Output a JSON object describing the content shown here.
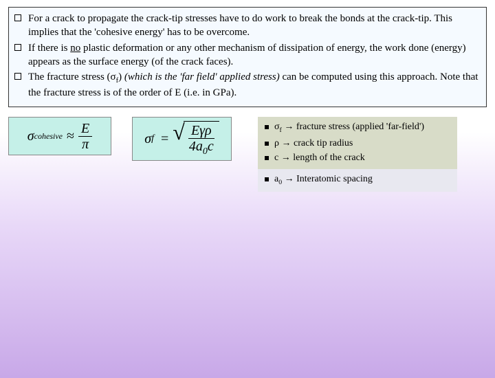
{
  "bullets": [
    {
      "pre": "For a crack to propagate the crack-tip stresses have to do work to break the bonds at the crack-tip. This implies that the 'cohesive energy' has to be overcome."
    },
    {
      "pre": "If there is ",
      "no": "no",
      "post": " plastic deformation or any other mechanism of dissipation of energy, the work done (energy) appears as the surface energy (of the crack faces)."
    },
    {
      "pre": "The fracture stress (σ",
      "sub": "f",
      "mid": ") ",
      "italic": "(which is the 'far field' applied stress)",
      "post": " can be computed using this approach. Note that the fracture stress is of the order of E (i.e. in GPa)."
    }
  ],
  "eq1": {
    "lhs_sym": "σ",
    "lhs_sub": "cohesive",
    "approx": "≈",
    "num": "E",
    "den": "π"
  },
  "eq2": {
    "lhs_sym": "σ",
    "lhs_sub": "f",
    "eq": "=",
    "num": "Eγρ",
    "den_pre": "4a",
    "den_sub": "0",
    "den_post": "c"
  },
  "defs1": [
    {
      "sym": "σ",
      "sub": "f",
      "arrow": " → ",
      "text": "fracture stress (applied 'far-field')"
    },
    {
      "sym": "ρ",
      "sub": "",
      "arrow": " → ",
      "text": "crack tip radius"
    },
    {
      "sym": "c",
      "sub": "",
      "arrow": " → ",
      "text": "length of the crack"
    }
  ],
  "defs2": [
    {
      "sym": "a",
      "sub": "0",
      "arrow": " → ",
      "text": "Interatomic spacing"
    }
  ]
}
